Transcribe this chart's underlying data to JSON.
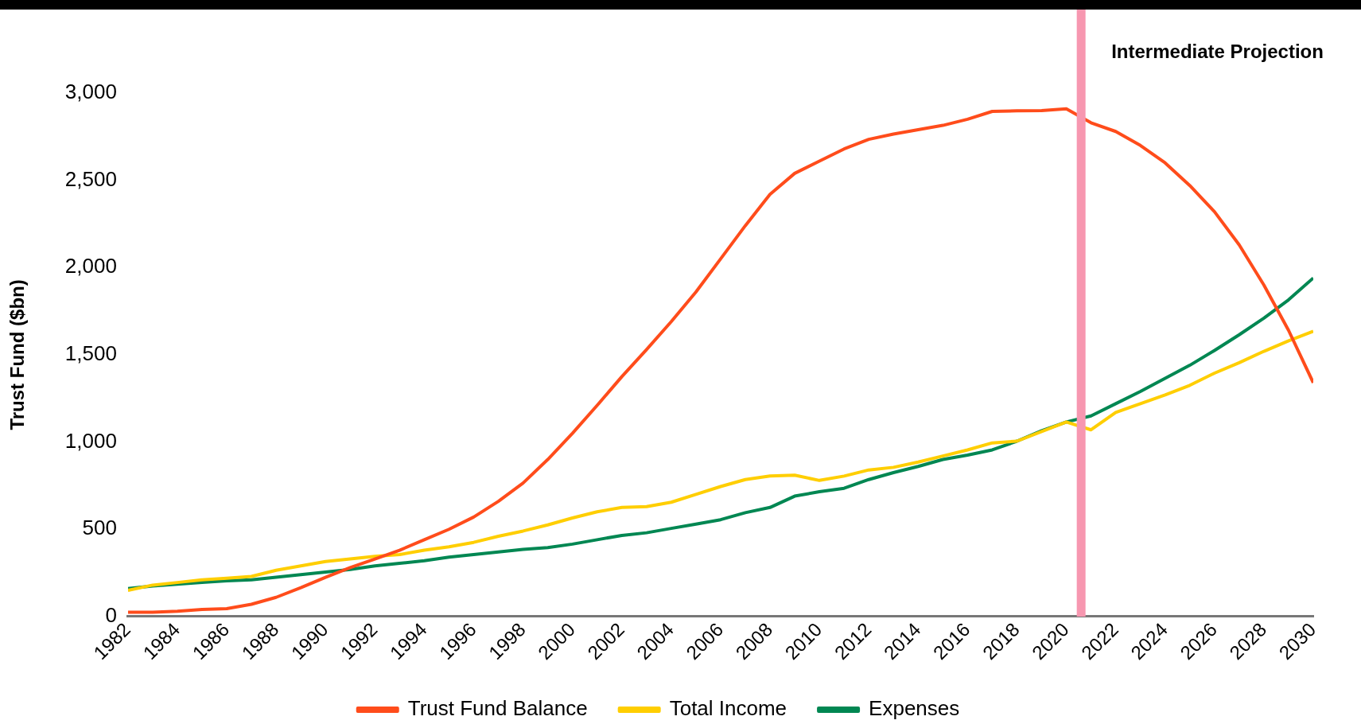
{
  "chart_data": {
    "type": "line",
    "ylabel": "Trust Fund ($bn)",
    "x": [
      1982,
      1983,
      1984,
      1985,
      1986,
      1987,
      1988,
      1989,
      1990,
      1991,
      1992,
      1993,
      1994,
      1995,
      1996,
      1997,
      1998,
      1999,
      2000,
      2001,
      2002,
      2003,
      2004,
      2005,
      2006,
      2007,
      2008,
      2009,
      2010,
      2011,
      2012,
      2013,
      2014,
      2015,
      2016,
      2017,
      2018,
      2019,
      2020,
      2021,
      2022,
      2023,
      2024,
      2025,
      2026,
      2027,
      2028,
      2029,
      2030
    ],
    "series": [
      {
        "name": "Trust Fund Balance",
        "color": "#ff4c1b",
        "values": [
          25,
          25,
          30,
          40,
          45,
          70,
          110,
          165,
          225,
          280,
          330,
          380,
          440,
          500,
          570,
          660,
          765,
          900,
          1050,
          1210,
          1375,
          1530,
          1690,
          1860,
          2050,
          2240,
          2420,
          2540,
          2610,
          2680,
          2735,
          2765,
          2790,
          2815,
          2850,
          2895,
          2898,
          2900,
          2910,
          2830,
          2780,
          2700,
          2600,
          2470,
          2320,
          2130,
          1900,
          1640,
          1340
        ]
      },
      {
        "name": "Total Income",
        "color": "#ffce00",
        "values": [
          150,
          180,
          195,
          210,
          220,
          230,
          265,
          290,
          315,
          330,
          345,
          355,
          380,
          400,
          425,
          460,
          490,
          525,
          565,
          600,
          625,
          630,
          655,
          700,
          745,
          785,
          805,
          810,
          780,
          805,
          840,
          855,
          885,
          920,
          955,
          995,
          1005,
          1060,
          1115,
          1070,
          1170,
          1220,
          1270,
          1325,
          1395,
          1455,
          1520,
          1580,
          1635
        ]
      },
      {
        "name": "Expenses",
        "color": "#008752",
        "values": [
          160,
          175,
          185,
          195,
          205,
          210,
          225,
          240,
          255,
          270,
          290,
          305,
          320,
          340,
          355,
          370,
          385,
          395,
          415,
          440,
          465,
          480,
          505,
          530,
          555,
          595,
          625,
          690,
          715,
          735,
          785,
          825,
          860,
          900,
          925,
          955,
          1005,
          1065,
          1115,
          1150,
          1220,
          1290,
          1365,
          1440,
          1525,
          1615,
          1710,
          1815,
          1940
        ]
      }
    ],
    "xlim": [
      1982,
      2030
    ],
    "xticks": [
      1982,
      1984,
      1986,
      1988,
      1990,
      1992,
      1994,
      1996,
      1998,
      2000,
      2002,
      2004,
      2006,
      2008,
      2010,
      2012,
      2014,
      2016,
      2018,
      2020,
      2022,
      2024,
      2026,
      2028,
      2030
    ],
    "ylim": [
      0,
      3000
    ],
    "yticks": [
      {
        "value": 0,
        "label": "0"
      },
      {
        "value": 500,
        "label": "500"
      },
      {
        "value": 1000,
        "label": "1,000"
      },
      {
        "value": 1500,
        "label": "1,500"
      },
      {
        "value": 2000,
        "label": "2,000"
      },
      {
        "value": 2500,
        "label": "2,500"
      },
      {
        "value": 3000,
        "label": "3,000"
      }
    ],
    "ref_lines": [
      {
        "axis": "x",
        "value": 2020.6,
        "label": "Intermediate Projection",
        "color": "#f797b0"
      }
    ],
    "grid": false,
    "legend": "bottom",
    "marker": "none",
    "line_style": "solid"
  }
}
